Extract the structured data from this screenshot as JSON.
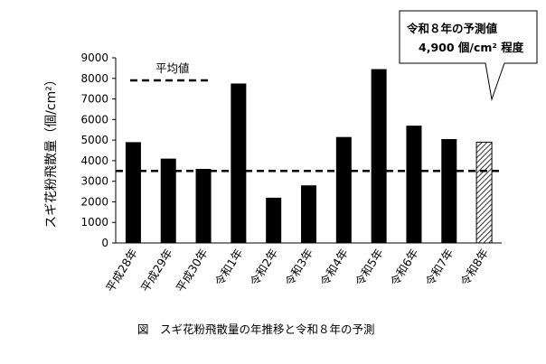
{
  "chart_data": {
    "type": "bar",
    "title": "",
    "xlabel": "",
    "ylabel": "スギ花粉飛散量（個/cm²）",
    "ylim": [
      0,
      9000
    ],
    "yticks": [
      0,
      1000,
      2000,
      3000,
      4000,
      5000,
      6000,
      7000,
      8000,
      9000
    ],
    "categories": [
      "平成28年",
      "平成29年",
      "平成30年",
      "令和1年",
      "令和2年",
      "令和3年",
      "令和4年",
      "令和5年",
      "令和6年",
      "令和7年",
      "令和8年"
    ],
    "values": [
      4900,
      4100,
      3600,
      7750,
      2200,
      2800,
      5150,
      8450,
      5700,
      5050,
      4900
    ],
    "forecast_index": 10,
    "average": {
      "label": "平均値",
      "value": 3500
    },
    "grid": false,
    "legend": "top-left",
    "callout": {
      "line1": "令和８年の予測値",
      "line2": "4,900 個/cm² 程度"
    },
    "caption": "図　スギ花粉飛散量の年推移と令和８年の予測"
  }
}
